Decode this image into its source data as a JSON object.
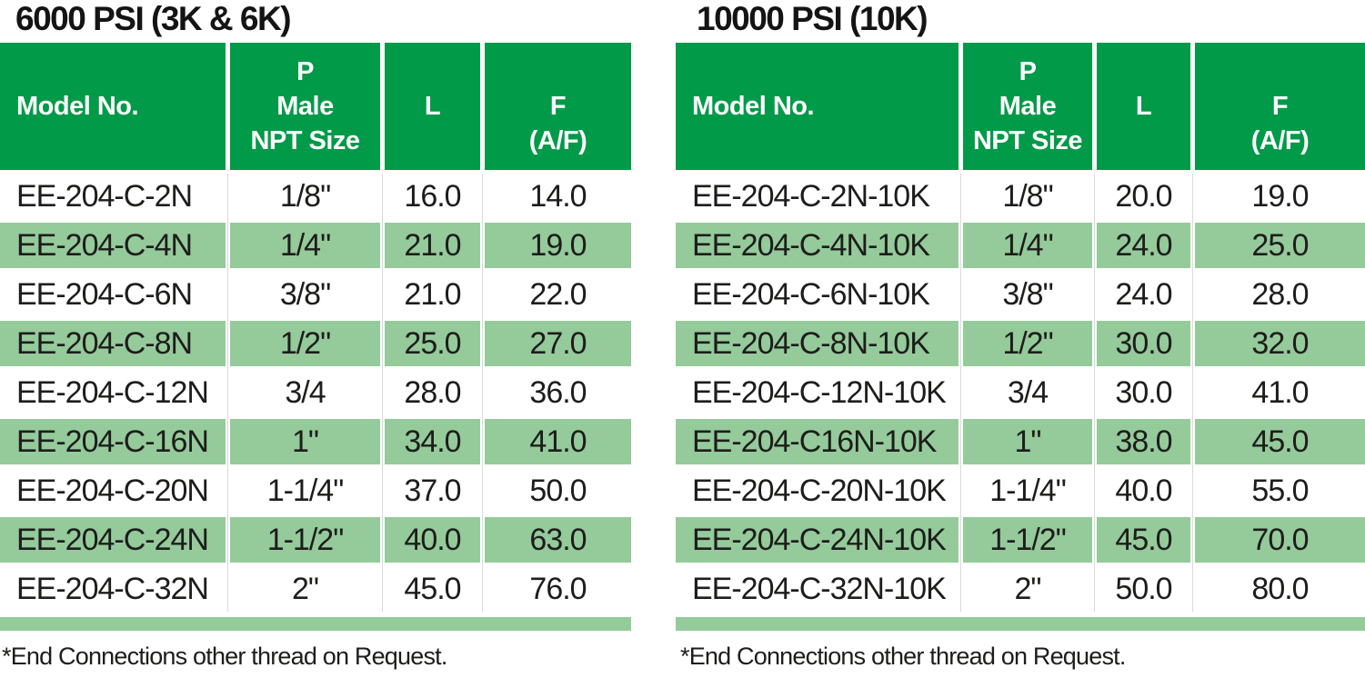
{
  "colors": {
    "header_green": "#009a48",
    "row_green": "#95ca9b",
    "text": "#1d1d1b"
  },
  "tables": [
    {
      "title": "6000 PSI (3K & 6K)",
      "header": {
        "model": "Model No.",
        "p_lines": [
          "P",
          "Male",
          "NPT Size"
        ],
        "l": "L",
        "f_lines": [
          "F",
          "(A/F)"
        ]
      },
      "rows": [
        {
          "model": "EE-204-C-2N",
          "npt": "1/8\"",
          "l": "16.0",
          "f": "14.0"
        },
        {
          "model": "EE-204-C-4N",
          "npt": "1/4\"",
          "l": "21.0",
          "f": "19.0"
        },
        {
          "model": "EE-204-C-6N",
          "npt": "3/8\"",
          "l": "21.0",
          "f": "22.0"
        },
        {
          "model": "EE-204-C-8N",
          "npt": "1/2\"",
          "l": "25.0",
          "f": "27.0"
        },
        {
          "model": "EE-204-C-12N",
          "npt": "3/4",
          "l": "28.0",
          "f": "36.0"
        },
        {
          "model": "EE-204-C-16N",
          "npt": "1\"",
          "l": "34.0",
          "f": "41.0"
        },
        {
          "model": "EE-204-C-20N",
          "npt": "1-1/4\"",
          "l": "37.0",
          "f": "50.0"
        },
        {
          "model": "EE-204-C-24N",
          "npt": "1-1/2\"",
          "l": "40.0",
          "f": "63.0"
        },
        {
          "model": "EE-204-C-32N",
          "npt": "2\"",
          "l": "45.0",
          "f": "76.0"
        }
      ],
      "footnote": "*End Connections other thread on Request."
    },
    {
      "title": "10000 PSI (10K)",
      "header": {
        "model": "Model No.",
        "p_lines": [
          "P",
          "Male",
          "NPT Size"
        ],
        "l": "L",
        "f_lines": [
          "F",
          "(A/F)"
        ]
      },
      "rows": [
        {
          "model": "EE-204-C-2N-10K",
          "npt": "1/8\"",
          "l": "20.0",
          "f": "19.0"
        },
        {
          "model": "EE-204-C-4N-10K",
          "npt": "1/4\"",
          "l": "24.0",
          "f": "25.0"
        },
        {
          "model": "EE-204-C-6N-10K",
          "npt": "3/8\"",
          "l": "24.0",
          "f": "28.0"
        },
        {
          "model": "EE-204-C-8N-10K",
          "npt": "1/2\"",
          "l": "30.0",
          "f": "32.0"
        },
        {
          "model": "EE-204-C-12N-10K",
          "npt": "3/4",
          "l": "30.0",
          "f": "41.0"
        },
        {
          "model": "EE-204-C16N-10K",
          "npt": "1\"",
          "l": "38.0",
          "f": "45.0"
        },
        {
          "model": "EE-204-C-20N-10K",
          "npt": "1-1/4\"",
          "l": "40.0",
          "f": "55.0"
        },
        {
          "model": "EE-204-C-24N-10K",
          "npt": "1-1/2\"",
          "l": "45.0",
          "f": "70.0"
        },
        {
          "model": "EE-204-C-32N-10K",
          "npt": "2\"",
          "l": "50.0",
          "f": "80.0"
        }
      ],
      "footnote": "*End Connections other thread on Request."
    }
  ]
}
